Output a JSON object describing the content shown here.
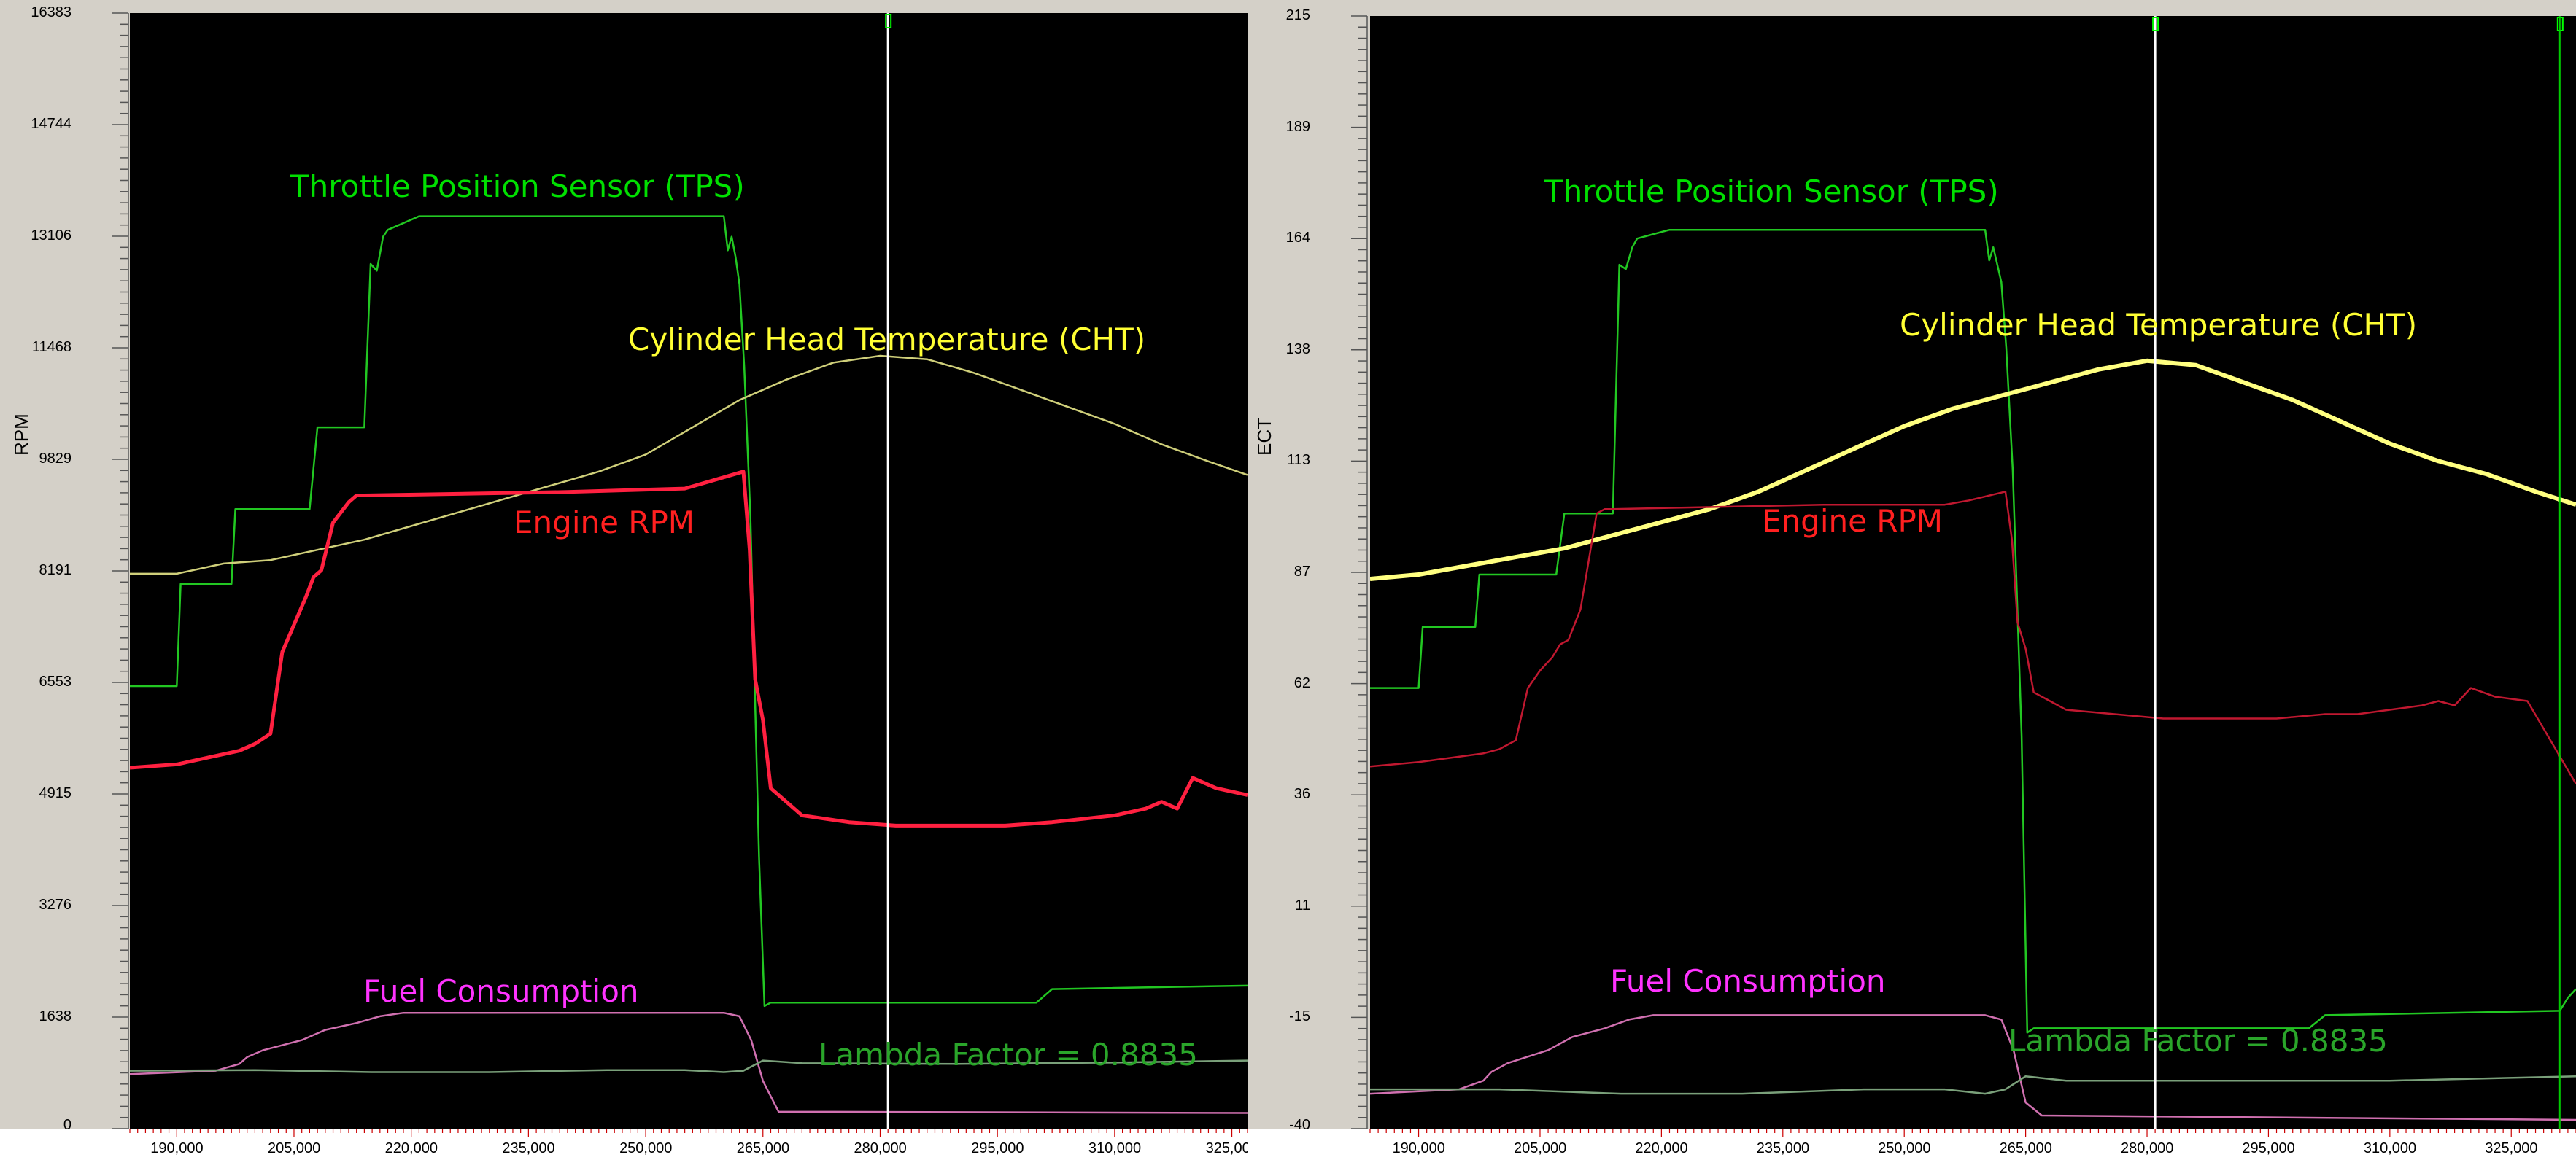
{
  "chart_data": [
    {
      "type": "line",
      "ylabel": "RPM",
      "xlabel": "",
      "title": "",
      "yticks": [
        "16383",
        "14744",
        "13106",
        "11468",
        "9829",
        "8191",
        "6553",
        "4915",
        "3276",
        "1638",
        "0"
      ],
      "ylim": [
        0,
        16383
      ],
      "xticks": [
        "190,000",
        "205,000",
        "220,000",
        "235,000",
        "250,000",
        "265,000",
        "280,000",
        "295,000",
        "310,000",
        "325,000"
      ],
      "xlim": [
        184000,
        327000
      ],
      "cursor_x": 281000,
      "annotations": [
        {
          "text": "Throttle Position Sensor (TPS)",
          "color": "#00e000",
          "series": "tps"
        },
        {
          "text": "Cylinder Head Temperature (CHT)",
          "color": "#ffff33",
          "series": "cht"
        },
        {
          "text": "Engine RPM",
          "color": "#ff2020",
          "series": "rpm"
        },
        {
          "text": "Fuel Consumption",
          "color": "#ff33ff",
          "series": "fuel"
        },
        {
          "text": "Lambda Factor = 0.8835",
          "color": "#2aa52a",
          "series": "lambda"
        }
      ],
      "series": [
        {
          "id": "tps",
          "color": "#22c722",
          "width": 2.5,
          "x": [
            184000,
            190000,
            190500,
            191000,
            197000,
            197500,
            198000,
            207000,
            208000,
            214000,
            214800,
            215600,
            216400,
            217000,
            221000,
            244000,
            259000,
            260000,
            260500,
            261000,
            261500,
            262000,
            262600,
            263400,
            264500,
            265200,
            266000,
            300000,
            302000,
            327000
          ],
          "y": [
            6500,
            6500,
            8000,
            8000,
            8000,
            9100,
            9100,
            9100,
            10300,
            10300,
            12700,
            12600,
            13100,
            13200,
            13400,
            13400,
            13400,
            13400,
            12900,
            13100,
            12800,
            12400,
            11200,
            9000,
            4000,
            1800,
            1850,
            1850,
            2050,
            2100
          ]
        },
        {
          "id": "cht",
          "color": "#cfcf7a",
          "width": 2.5,
          "x": [
            184000,
            190000,
            196000,
            202000,
            208000,
            214000,
            220000,
            226000,
            232000,
            238000,
            244000,
            250000,
            256000,
            262000,
            268000,
            274000,
            280000,
            286000,
            292000,
            298000,
            304000,
            310000,
            316000,
            322000,
            327000
          ],
          "y": [
            8150,
            8150,
            8300,
            8350,
            8500,
            8650,
            8850,
            9050,
            9250,
            9450,
            9650,
            9900,
            10300,
            10700,
            11000,
            11250,
            11350,
            11300,
            11100,
            10850,
            10600,
            10350,
            10050,
            9800,
            9600
          ]
        },
        {
          "id": "rpm",
          "color": "#ff2040",
          "width": 5,
          "x": [
            184000,
            190000,
            198000,
            200000,
            202000,
            203500,
            205000,
            206500,
            207500,
            208500,
            210000,
            212000,
            213000,
            214000,
            240000,
            255000,
            258000,
            262500,
            263300,
            264000,
            265000,
            266000,
            268000,
            270000,
            276000,
            282000,
            290000,
            296000,
            302000,
            306000,
            310000,
            314000,
            316000,
            318000,
            320000,
            323000,
            327000
          ],
          "y": [
            5300,
            5350,
            5550,
            5650,
            5800,
            7000,
            7400,
            7800,
            8100,
            8200,
            8900,
            9200,
            9300,
            9300,
            9350,
            9400,
            9500,
            9650,
            8500,
            6600,
            6000,
            5000,
            4800,
            4600,
            4500,
            4450,
            4450,
            4450,
            4500,
            4550,
            4600,
            4700,
            4800,
            4700,
            5150,
            5000,
            4900
          ]
        },
        {
          "id": "fuel",
          "color": "#d070b0",
          "width": 2.5,
          "x": [
            184000,
            195000,
            198000,
            199000,
            201000,
            206000,
            209000,
            213000,
            216000,
            219000,
            257000,
            260000,
            262000,
            263500,
            265000,
            267000,
            327000
          ],
          "y": [
            800,
            850,
            950,
            1050,
            1150,
            1300,
            1450,
            1550,
            1650,
            1700,
            1700,
            1700,
            1650,
            1300,
            700,
            250,
            230
          ]
        },
        {
          "id": "lambda",
          "color": "#7aa07a",
          "width": 2.5,
          "x": [
            184000,
            200000,
            215000,
            230000,
            245000,
            255000,
            260000,
            262500,
            265000,
            270000,
            290000,
            310000,
            327000
          ],
          "y": [
            850,
            860,
            830,
            830,
            860,
            860,
            830,
            850,
            1000,
            960,
            950,
            970,
            1000
          ]
        }
      ]
    },
    {
      "type": "line",
      "ylabel": "ECT",
      "xlabel": "",
      "title": "",
      "yticks": [
        "215",
        "189",
        "164",
        "138",
        "113",
        "87",
        "62",
        "36",
        "11",
        "-15",
        "-40"
      ],
      "ylim": [
        -40,
        215
      ],
      "xticks": [
        "190,000",
        "205,000",
        "220,000",
        "235,000",
        "250,000",
        "265,000",
        "280,000",
        "295,000",
        "310,000",
        "325,000"
      ],
      "xlim": [
        184000,
        333000
      ],
      "cursor_x": 281000,
      "cursor2_x": 331000,
      "annotations": [
        {
          "text": "Throttle Position Sensor (TPS)",
          "color": "#00e000",
          "series": "tps"
        },
        {
          "text": "Cylinder Head Temperature (CHT)",
          "color": "#ffff33",
          "series": "cht"
        },
        {
          "text": "Engine RPM",
          "color": "#ff2020",
          "series": "rpm"
        },
        {
          "text": "Fuel Consumption",
          "color": "#ff33ff",
          "series": "fuel"
        },
        {
          "text": "Lambda Factor = 0.8835",
          "color": "#2aa52a",
          "series": "lambda"
        }
      ],
      "series": [
        {
          "id": "tps",
          "color": "#22c722",
          "width": 2.5,
          "x": [
            184000,
            190000,
            190500,
            191000,
            197000,
            197500,
            198000,
            207000,
            208000,
            214000,
            214800,
            215600,
            216400,
            217000,
            221000,
            244000,
            259000,
            260000,
            260500,
            261000,
            261500,
            262000,
            262600,
            263400,
            264500,
            265200,
            266000,
            300000,
            302000,
            331000,
            332000,
            333000
          ],
          "y": [
            61,
            61,
            75,
            75,
            75,
            87,
            87,
            87,
            101,
            101,
            158,
            157,
            162,
            164,
            166,
            166,
            166,
            166,
            159,
            162,
            158,
            154,
            139,
            111,
            50,
            -18,
            -17,
            -17,
            -14,
            -13,
            -10,
            -8
          ]
        },
        {
          "id": "cht",
          "color": "#ffff80",
          "width": 6,
          "x": [
            184000,
            190000,
            196000,
            202000,
            208000,
            214000,
            220000,
            226000,
            232000,
            238000,
            244000,
            250000,
            256000,
            262000,
            268000,
            274000,
            280000,
            286000,
            292000,
            298000,
            304000,
            310000,
            316000,
            322000,
            328000,
            333000
          ],
          "y": [
            86,
            87,
            89,
            91,
            93,
            96,
            99,
            102,
            106,
            111,
            116,
            121,
            125,
            128,
            131,
            134,
            136,
            135,
            131,
            127,
            122,
            117,
            113,
            110,
            106,
            103
          ]
        },
        {
          "id": "rpm",
          "color": "#c01830",
          "width": 2.5,
          "x": [
            184000,
            190000,
            198000,
            200000,
            202000,
            203500,
            205000,
            206500,
            207500,
            208500,
            210000,
            212000,
            213000,
            214000,
            240000,
            255000,
            258000,
            262500,
            263300,
            264000,
            265000,
            266000,
            268000,
            270000,
            276000,
            282000,
            290000,
            296000,
            302000,
            306000,
            310000,
            314000,
            316000,
            318000,
            320000,
            323000,
            327000,
            333000
          ],
          "y": [
            43,
            44,
            46,
            47,
            49,
            61,
            65,
            68,
            71,
            72,
            79,
            101,
            102,
            102,
            103,
            103,
            104,
            106,
            95,
            76,
            70,
            60,
            58,
            56,
            55,
            54,
            54,
            54,
            55,
            55,
            56,
            57,
            58,
            57,
            61,
            59,
            58,
            39
          ]
        },
        {
          "id": "fuel",
          "color": "#d070b0",
          "width": 2.5,
          "x": [
            184000,
            195000,
            198000,
            199000,
            201000,
            206000,
            209000,
            213000,
            216000,
            219000,
            257000,
            260000,
            262000,
            263500,
            265000,
            267000,
            333000
          ],
          "y": [
            -32,
            -31,
            -29,
            -27,
            -25,
            -22,
            -19,
            -17,
            -15,
            -14,
            -14,
            -14,
            -15,
            -22,
            -34,
            -37,
            -38
          ]
        },
        {
          "id": "lambda",
          "color": "#7aa07a",
          "width": 2.5,
          "x": [
            184000,
            200000,
            215000,
            230000,
            245000,
            255000,
            260000,
            262500,
            265000,
            270000,
            290000,
            310000,
            333000
          ],
          "y": [
            -31,
            -31,
            -32,
            -32,
            -31,
            -31,
            -32,
            -31,
            -28,
            -29,
            -29,
            -29,
            -28
          ]
        }
      ]
    }
  ]
}
